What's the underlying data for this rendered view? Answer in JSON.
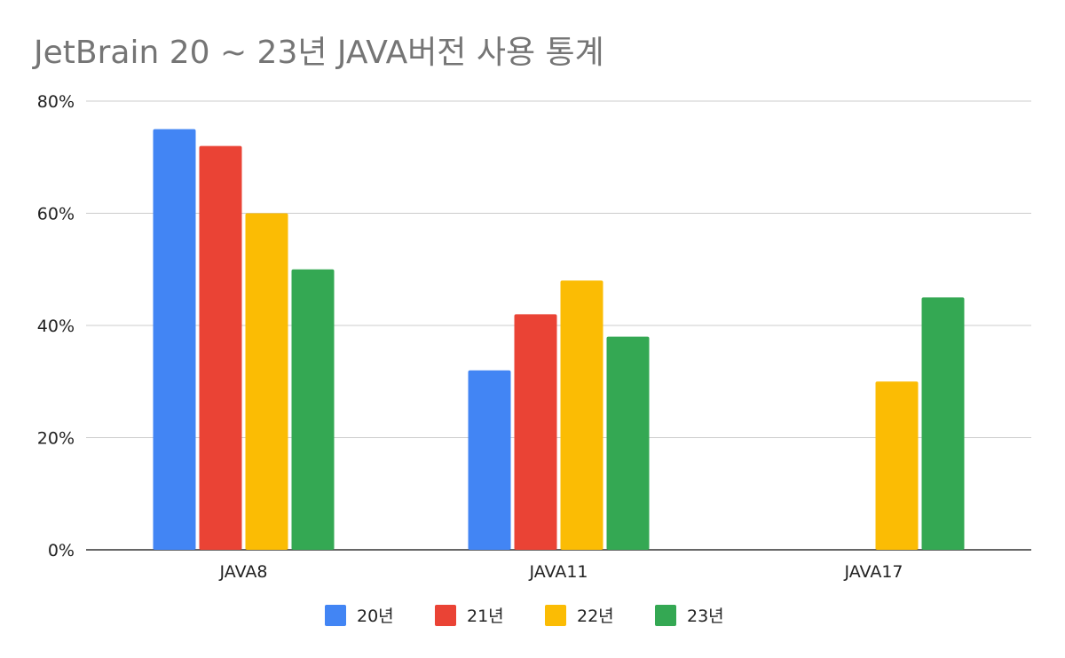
{
  "chart_data": {
    "type": "bar",
    "title": "JetBrain 20 ~ 23년 JAVA버전 사용 통계",
    "xlabel": "",
    "ylabel": "",
    "categories": [
      "JAVA8",
      "JAVA11",
      "JAVA17"
    ],
    "series": [
      {
        "name": "20년",
        "color": "#4285f4",
        "values": [
          75,
          32,
          0
        ]
      },
      {
        "name": "21년",
        "color": "#ea4335",
        "values": [
          72,
          42,
          0
        ]
      },
      {
        "name": "22년",
        "color": "#fbbc04",
        "values": [
          60,
          48,
          30
        ]
      },
      {
        "name": "23년",
        "color": "#34a853",
        "values": [
          50,
          38,
          45
        ]
      }
    ],
    "ylim": [
      0,
      80
    ],
    "yticks": [
      "0%",
      "20%",
      "40%",
      "60%",
      "80%"
    ],
    "grid": true,
    "legend_position": "bottom"
  }
}
